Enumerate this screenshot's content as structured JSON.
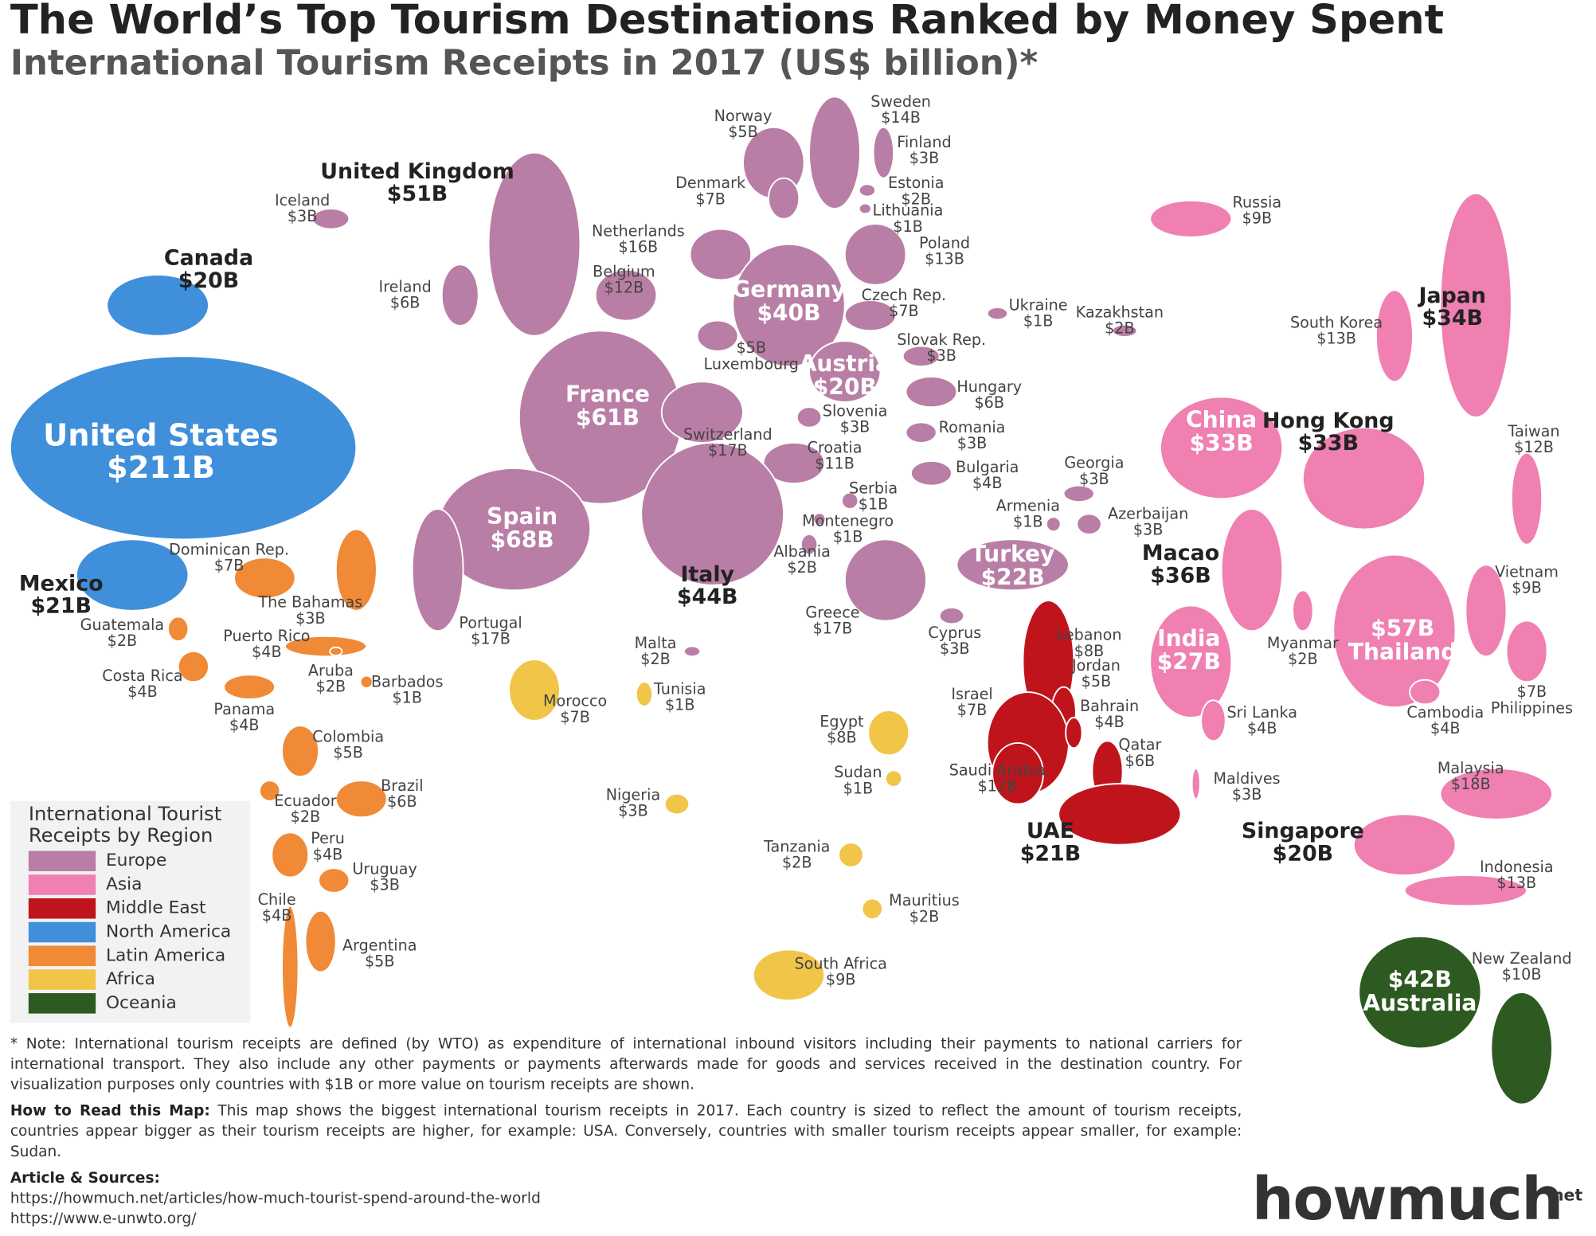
{
  "header": {
    "title": "The World’s Top Tourism Destinations Ranked by Money Spent",
    "subtitle": "International Tourism Receipts in 2017 (US$ billion)*"
  },
  "legend": {
    "title": "International Tourist Receipts by Region",
    "items": [
      {
        "label": "Europe",
        "color": "#b97ea6"
      },
      {
        "label": "Asia",
        "color": "#ef80b1"
      },
      {
        "label": "Middle East",
        "color": "#c0141c"
      },
      {
        "label": "North America",
        "color": "#3f8fda"
      },
      {
        "label": "Latin America",
        "color": "#f08a36"
      },
      {
        "label": "Africa",
        "color": "#f1c548"
      },
      {
        "label": "Oceania",
        "color": "#2d5a20"
      }
    ]
  },
  "countries": [
    {
      "name": "Norway",
      "value": "$5B",
      "region": "Europe"
    },
    {
      "name": "Sweden",
      "value": "$14B",
      "region": "Europe"
    },
    {
      "name": "Finland",
      "value": "$3B",
      "region": "Europe"
    },
    {
      "name": "Denmark",
      "value": "$7B",
      "region": "Europe"
    },
    {
      "name": "Estonia",
      "value": "$2B",
      "region": "Europe"
    },
    {
      "name": "Lithuania",
      "value": "$1B",
      "region": "Europe"
    },
    {
      "name": "Iceland",
      "value": "$3B",
      "region": "Europe"
    },
    {
      "name": "United Kingdom",
      "value": "$51B",
      "region": "Europe"
    },
    {
      "name": "Netherlands",
      "value": "$16B",
      "region": "Europe"
    },
    {
      "name": "Belgium",
      "value": "$12B",
      "region": "Europe"
    },
    {
      "name": "Ireland",
      "value": "$6B",
      "region": "Europe"
    },
    {
      "name": "Germany",
      "value": "$40B",
      "region": "Europe"
    },
    {
      "name": "Poland",
      "value": "$13B",
      "region": "Europe"
    },
    {
      "name": "Czech Rep.",
      "value": "$7B",
      "region": "Europe"
    },
    {
      "name": "Luxembourg",
      "value": "$5B",
      "region": "Europe"
    },
    {
      "name": "France",
      "value": "$61B",
      "region": "Europe"
    },
    {
      "name": "Austria",
      "value": "$20B",
      "region": "Europe"
    },
    {
      "name": "Slovak Rep.",
      "value": "$3B",
      "region": "Europe"
    },
    {
      "name": "Hungary",
      "value": "$6B",
      "region": "Europe"
    },
    {
      "name": "Switzerland",
      "value": "$17B",
      "region": "Europe"
    },
    {
      "name": "Slovenia",
      "value": "$3B",
      "region": "Europe"
    },
    {
      "name": "Croatia",
      "value": "$11B",
      "region": "Europe"
    },
    {
      "name": "Romania",
      "value": "$3B",
      "region": "Europe"
    },
    {
      "name": "Bulgaria",
      "value": "$4B",
      "region": "Europe"
    },
    {
      "name": "Serbia",
      "value": "$1B",
      "region": "Europe"
    },
    {
      "name": "Montenegro",
      "value": "$1B",
      "region": "Europe"
    },
    {
      "name": "Albania",
      "value": "$2B",
      "region": "Europe"
    },
    {
      "name": "Spain",
      "value": "$68B",
      "region": "Europe"
    },
    {
      "name": "Portugal",
      "value": "$17B",
      "region": "Europe"
    },
    {
      "name": "Italy",
      "value": "$44B",
      "region": "Europe"
    },
    {
      "name": "Malta",
      "value": "$2B",
      "region": "Europe"
    },
    {
      "name": "Greece",
      "value": "$17B",
      "region": "Europe"
    },
    {
      "name": "Cyprus",
      "value": "$3B",
      "region": "Europe"
    },
    {
      "name": "Turkey",
      "value": "$22B",
      "region": "Europe"
    },
    {
      "name": "Georgia",
      "value": "$3B",
      "region": "Europe"
    },
    {
      "name": "Armenia",
      "value": "$1B",
      "region": "Europe"
    },
    {
      "name": "Azerbaijan",
      "value": "$3B",
      "region": "Europe"
    },
    {
      "name": "Ukraine",
      "value": "$1B",
      "region": "Europe"
    },
    {
      "name": "Kazakhstan",
      "value": "$2B",
      "region": "Europe"
    },
    {
      "name": "Russia",
      "value": "$9B",
      "region": "Asia"
    },
    {
      "name": "Lebanon",
      "value": "$8B",
      "region": "Middle East"
    },
    {
      "name": "Jordan",
      "value": "$5B",
      "region": "Middle East"
    },
    {
      "name": "Israel",
      "value": "$7B",
      "region": "Middle East"
    },
    {
      "name": "Bahrain",
      "value": "$4B",
      "region": "Middle East"
    },
    {
      "name": "Qatar",
      "value": "$6B",
      "region": "Middle East"
    },
    {
      "name": "Saudi Arabia",
      "value": "$12B",
      "region": "Middle East"
    },
    {
      "name": "UAE",
      "value": "$21B",
      "region": "Middle East"
    },
    {
      "name": "South Korea",
      "value": "$13B",
      "region": "Asia"
    },
    {
      "name": "Japan",
      "value": "$34B",
      "region": "Asia"
    },
    {
      "name": "China",
      "value": "$33B",
      "region": "Asia"
    },
    {
      "name": "Hong Kong",
      "value": "$33B",
      "region": "Asia"
    },
    {
      "name": "Taiwan",
      "value": "$12B",
      "region": "Asia"
    },
    {
      "name": "Macao",
      "value": "$36B",
      "region": "Asia"
    },
    {
      "name": "India",
      "value": "$27B",
      "region": "Asia"
    },
    {
      "name": "Myanmar",
      "value": "$2B",
      "region": "Asia"
    },
    {
      "name": "Thailand",
      "value": "$57B",
      "region": "Asia"
    },
    {
      "name": "Vietnam",
      "value": "$9B",
      "region": "Asia"
    },
    {
      "name": "Sri Lanka",
      "value": "$4B",
      "region": "Asia"
    },
    {
      "name": "Cambodia",
      "value": "$4B",
      "region": "Asia"
    },
    {
      "name": "Philippines",
      "value": "$7B",
      "region": "Asia"
    },
    {
      "name": "Maldives",
      "value": "$3B",
      "region": "Asia"
    },
    {
      "name": "Malaysia",
      "value": "$18B",
      "region": "Asia"
    },
    {
      "name": "Singapore",
      "value": "$20B",
      "region": "Asia"
    },
    {
      "name": "Indonesia",
      "value": "$13B",
      "region": "Asia"
    },
    {
      "name": "Canada",
      "value": "$20B",
      "region": "North America"
    },
    {
      "name": "United States",
      "value": "$211B",
      "region": "North America"
    },
    {
      "name": "Mexico",
      "value": "$21B",
      "region": "North America"
    },
    {
      "name": "Dominican Rep.",
      "value": "$7B",
      "region": "Latin America"
    },
    {
      "name": "The Bahamas",
      "value": "$3B",
      "region": "Latin America"
    },
    {
      "name": "Guatemala",
      "value": "$2B",
      "region": "Latin America"
    },
    {
      "name": "Puerto Rico",
      "value": "$4B",
      "region": "Latin America"
    },
    {
      "name": "Costa Rica",
      "value": "$4B",
      "region": "Latin America"
    },
    {
      "name": "Aruba",
      "value": "$2B",
      "region": "Latin America"
    },
    {
      "name": "Barbados",
      "value": "$1B",
      "region": "Latin America"
    },
    {
      "name": "Panama",
      "value": "$4B",
      "region": "Latin America"
    },
    {
      "name": "Colombia",
      "value": "$5B",
      "region": "Latin America"
    },
    {
      "name": "Ecuador",
      "value": "$2B",
      "region": "Latin America"
    },
    {
      "name": "Brazil",
      "value": "$6B",
      "region": "Latin America"
    },
    {
      "name": "Peru",
      "value": "$4B",
      "region": "Latin America"
    },
    {
      "name": "Uruguay",
      "value": "$3B",
      "region": "Latin America"
    },
    {
      "name": "Chile",
      "value": "$4B",
      "region": "Latin America"
    },
    {
      "name": "Argentina",
      "value": "$5B",
      "region": "Latin America"
    },
    {
      "name": "Morocco",
      "value": "$7B",
      "region": "Africa"
    },
    {
      "name": "Tunisia",
      "value": "$1B",
      "region": "Africa"
    },
    {
      "name": "Egypt",
      "value": "$8B",
      "region": "Africa"
    },
    {
      "name": "Sudan",
      "value": "$1B",
      "region": "Africa"
    },
    {
      "name": "Nigeria",
      "value": "$3B",
      "region": "Africa"
    },
    {
      "name": "Tanzania",
      "value": "$2B",
      "region": "Africa"
    },
    {
      "name": "Mauritius",
      "value": "$2B",
      "region": "Africa"
    },
    {
      "name": "South Africa",
      "value": "$9B",
      "region": "Africa"
    },
    {
      "name": "Australia",
      "value": "$42B",
      "region": "Oceania"
    },
    {
      "name": "New Zealand",
      "value": "$10B",
      "region": "Oceania"
    }
  ],
  "footer": {
    "note": "* Note: International tourism receipts are defined (by WTO) as expenditure of international inbound visitors including their payments to national carriers for international transport. They also include any other payments or payments afterwards made for goods and services received in the destination country.  For visualization purposes only countries with $1B or more value on tourism receipts are shown.",
    "how_to_read_heading": "How to Read this Map:",
    "how_to_read": "This map shows the biggest international tourism receipts in 2017. Each country is sized to reflect the amount of tourism receipts, countries appear bigger as their tourism receipts are higher, for example: USA. Conversely, countries with smaller tourism receipts appear smaller, for example: Sudan.",
    "sources_heading": "Article & Sources:",
    "sources": [
      "https://howmuch.net/articles/how-much-tourist-spend-around-the-world",
      "https://www.e-unwto.org/"
    ],
    "logo": "howmuch",
    "logo_suffix": "net"
  }
}
